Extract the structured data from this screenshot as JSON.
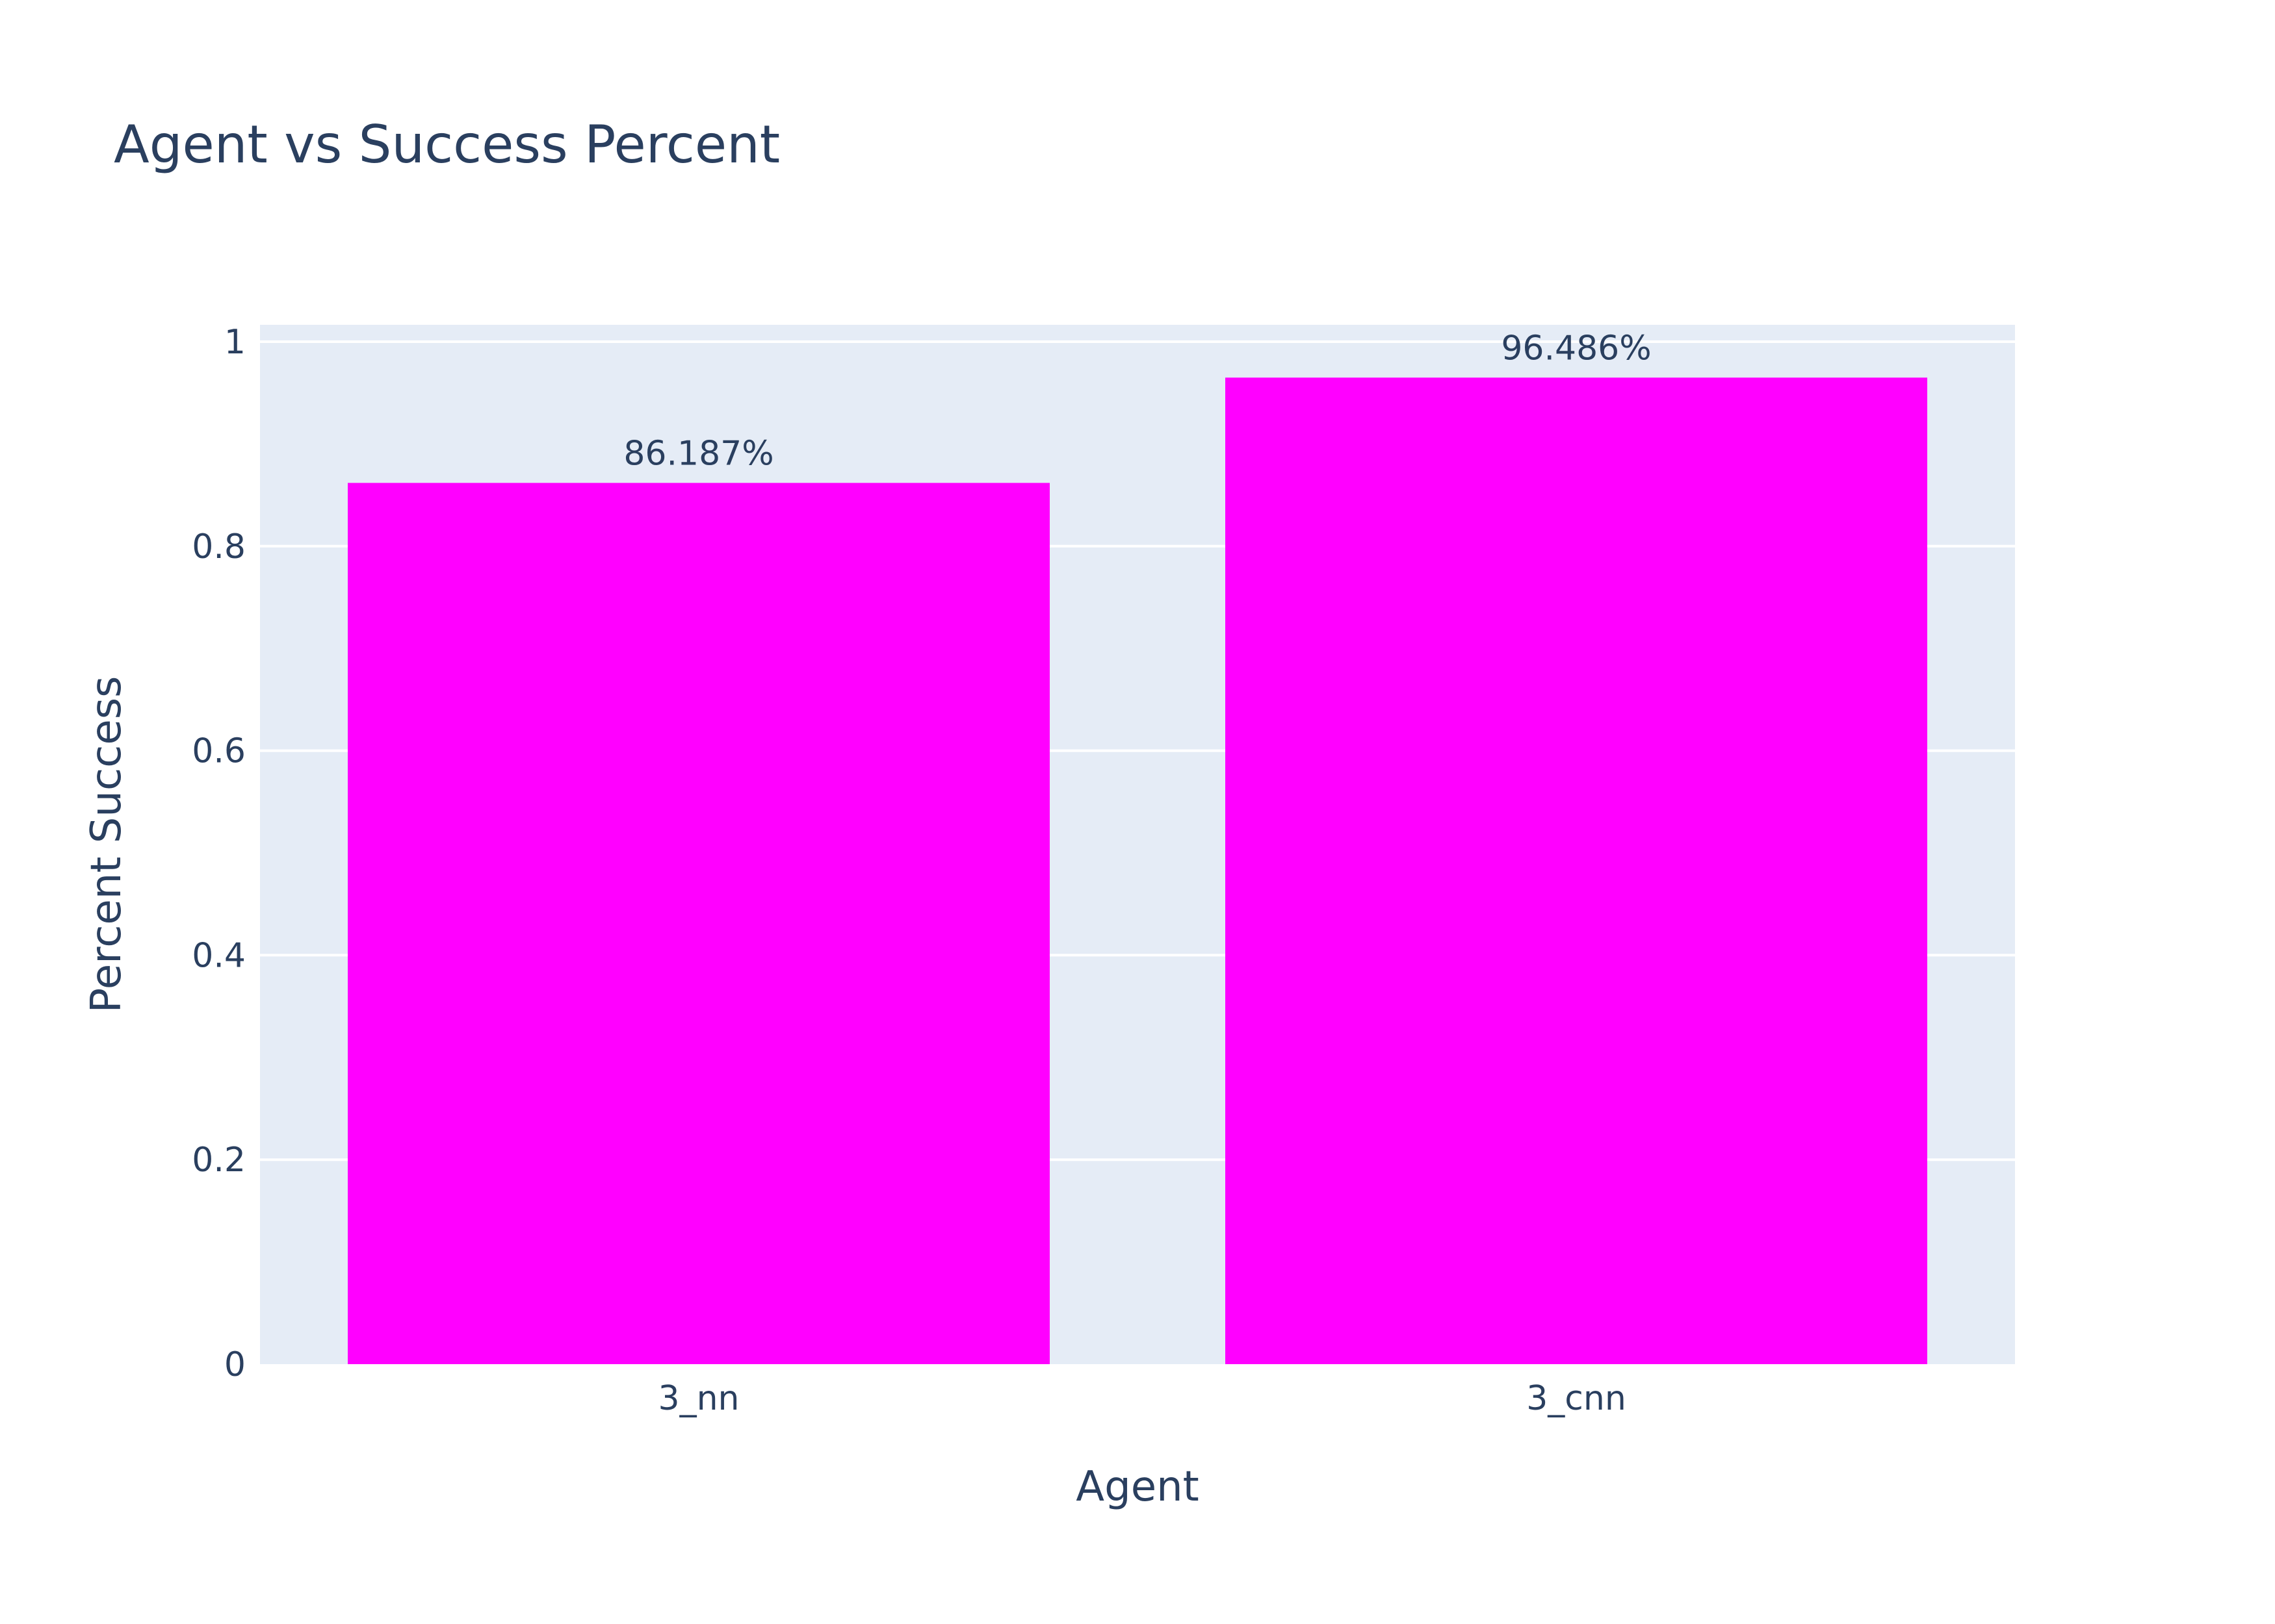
{
  "chart_data": {
    "type": "bar",
    "title": "Agent vs Success Percent",
    "xlabel": "Agent",
    "ylabel": "Percent Success",
    "categories": [
      "3_nn",
      "3_cnn"
    ],
    "values": [
      0.86187,
      0.96486
    ],
    "data_labels": [
      "86.187%",
      "96.486%"
    ],
    "ylim": [
      0,
      1.0165
    ],
    "yticks": [
      0,
      0.2,
      0.4,
      0.6,
      0.8,
      1
    ],
    "ytick_labels": [
      "0",
      "0.2",
      "0.4",
      "0.6",
      "0.8",
      "1"
    ],
    "grid": true,
    "bar_color": "#ff00ff",
    "plot_background": "#e5ecf6",
    "grid_color": "#ffffff",
    "text_color": "#2a3f5f"
  }
}
